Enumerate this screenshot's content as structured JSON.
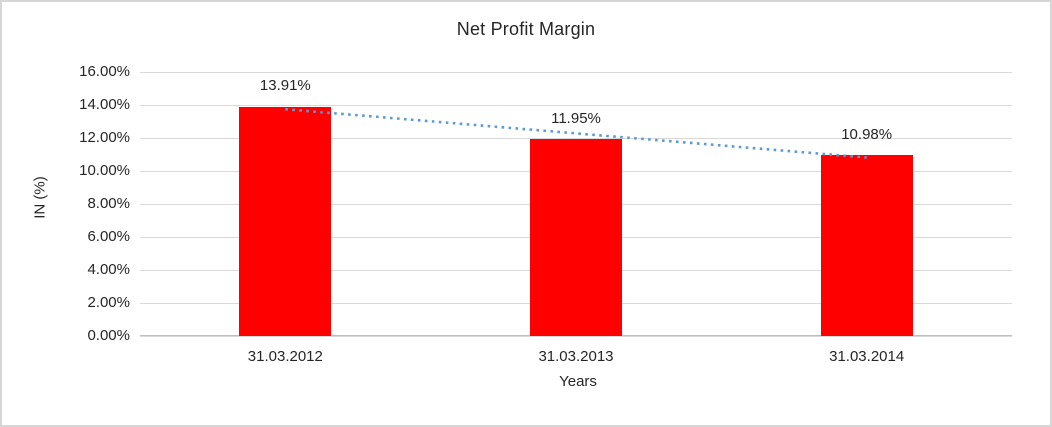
{
  "chart_data": {
    "type": "bar",
    "title": "Net Profit Margin",
    "xlabel": "Years",
    "ylabel": "IN (%)",
    "categories": [
      "31.03.2012",
      "31.03.2013",
      "31.03.2014"
    ],
    "values": [
      13.91,
      11.95,
      10.98
    ],
    "data_labels": [
      "13.91%",
      "11.95%",
      "10.98%"
    ],
    "ylim": [
      0,
      16
    ],
    "ytick_step": 2,
    "ytick_labels": [
      "0.00%",
      "2.00%",
      "4.00%",
      "6.00%",
      "8.00%",
      "10.00%",
      "12.00%",
      "14.00%",
      "16.00%"
    ],
    "grid": true,
    "legend": "none",
    "bar_color": "#FF0000",
    "gridline_color": "#D9D9D9",
    "trendline": {
      "kind": "linear",
      "style": "dotted",
      "color": "#5B9BD5"
    }
  }
}
